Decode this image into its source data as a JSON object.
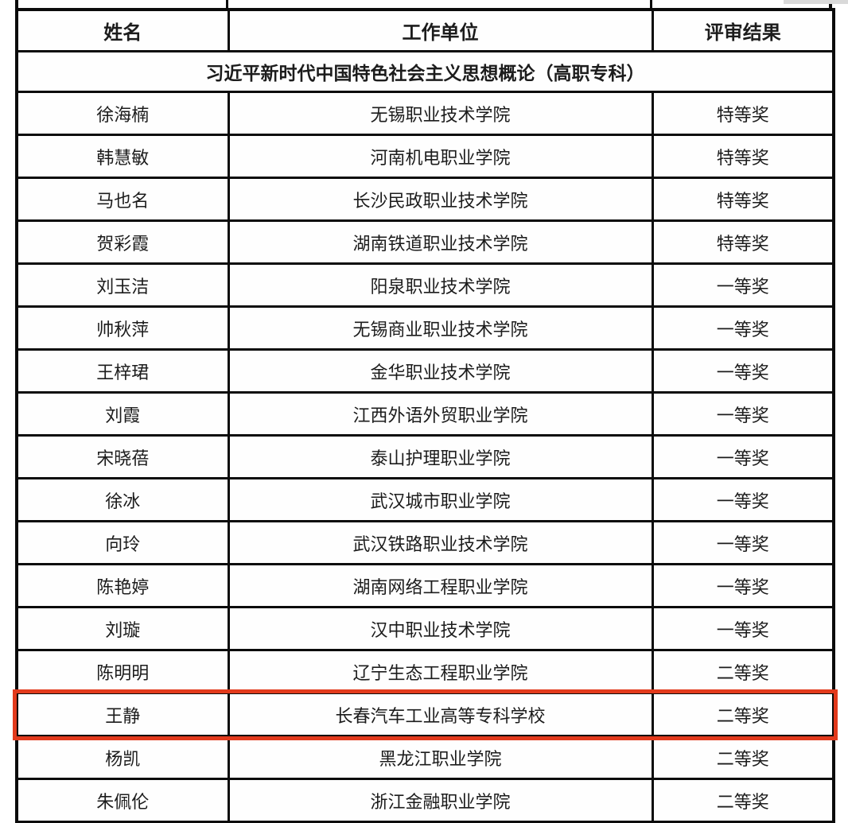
{
  "page": {
    "background_color": "#ffffff"
  },
  "table": {
    "columns": [
      "姓名",
      "工作单位",
      "评审结果"
    ],
    "section_title": "习近平新时代中国特色社会主义思想概论（高职专科）",
    "rows": [
      {
        "name": "徐海楠",
        "unit": "无锡职业技术学院",
        "result": "特等奖"
      },
      {
        "name": "韩慧敏",
        "unit": "河南机电职业学院",
        "result": "特等奖"
      },
      {
        "name": "马也名",
        "unit": "长沙民政职业技术学院",
        "result": "特等奖"
      },
      {
        "name": "贺彩霞",
        "unit": "湖南铁道职业技术学院",
        "result": "特等奖"
      },
      {
        "name": "刘玉洁",
        "unit": "阳泉职业技术学院",
        "result": "一等奖"
      },
      {
        "name": "帅秋萍",
        "unit": "无锡商业职业技术学院",
        "result": "一等奖"
      },
      {
        "name": "王梓珺",
        "unit": "金华职业技术学院",
        "result": "一等奖"
      },
      {
        "name": "刘霞",
        "unit": "江西外语外贸职业学院",
        "result": "一等奖"
      },
      {
        "name": "宋晓蓓",
        "unit": "泰山护理职业学院",
        "result": "一等奖"
      },
      {
        "name": "徐冰",
        "unit": "武汉城市职业学院",
        "result": "一等奖"
      },
      {
        "name": "向玲",
        "unit": "武汉铁路职业技术学院",
        "result": "一等奖"
      },
      {
        "name": "陈艳婷",
        "unit": "湖南网络工程职业学院",
        "result": "一等奖"
      },
      {
        "name": "刘璇",
        "unit": "汉中职业技术学院",
        "result": "一等奖"
      },
      {
        "name": "陈明明",
        "unit": "辽宁生态工程职业学院",
        "result": "二等奖"
      },
      {
        "name": "王静",
        "unit": "长春汽车工业高等专科学校",
        "result": "二等奖"
      },
      {
        "name": "杨凯",
        "unit": "黑龙江职业学院",
        "result": "二等奖"
      },
      {
        "name": "朱佩伦",
        "unit": "浙江金融职业学院",
        "result": "二等奖"
      }
    ],
    "highlighted_row_index": 14,
    "highlight_color": "#e23a1c",
    "border_color": "#0b0b0b",
    "text_color": "#1c1c1c"
  }
}
